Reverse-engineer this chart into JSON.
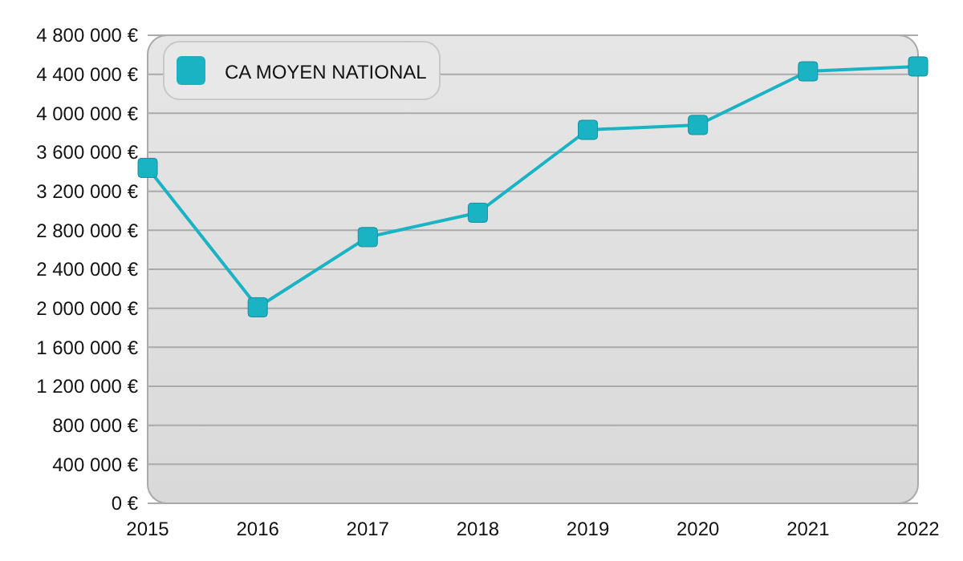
{
  "chart_data": {
    "type": "line",
    "x": [
      2015,
      2016,
      2017,
      2018,
      2019,
      2020,
      2021,
      2022
    ],
    "series": [
      {
        "name": "CA MOYEN NATIONAL",
        "color": "#1ab3c4",
        "values": [
          3440000,
          2010000,
          2730000,
          2980000,
          3830000,
          3880000,
          4430000,
          4480000
        ]
      }
    ],
    "xlim": [
      2015,
      2022
    ],
    "xticks": [
      2015,
      2016,
      2017,
      2018,
      2019,
      2020,
      2021,
      2022
    ],
    "ylim": [
      0,
      4800000
    ],
    "yticks": [
      {
        "value": 0,
        "label": "0 €"
      },
      {
        "value": 400000,
        "label": "400 000 €"
      },
      {
        "value": 800000,
        "label": "800 000 €"
      },
      {
        "value": 1200000,
        "label": "1 200 000 €"
      },
      {
        "value": 1600000,
        "label": "1 600 000 €"
      },
      {
        "value": 2000000,
        "label": "2 000 000 €"
      },
      {
        "value": 2400000,
        "label": "2 400 000 €"
      },
      {
        "value": 2800000,
        "label": "2 800 000 €"
      },
      {
        "value": 3200000,
        "label": "3 200 000 €"
      },
      {
        "value": 3600000,
        "label": "3 600 000 €"
      },
      {
        "value": 4000000,
        "label": "4 000 000 €"
      },
      {
        "value": 4400000,
        "label": "4 400 000 €"
      },
      {
        "value": 4800000,
        "label": "4 800 000 €"
      }
    ],
    "grid": "y",
    "legend": "top left",
    "marker": "square",
    "line_style": "solid"
  }
}
